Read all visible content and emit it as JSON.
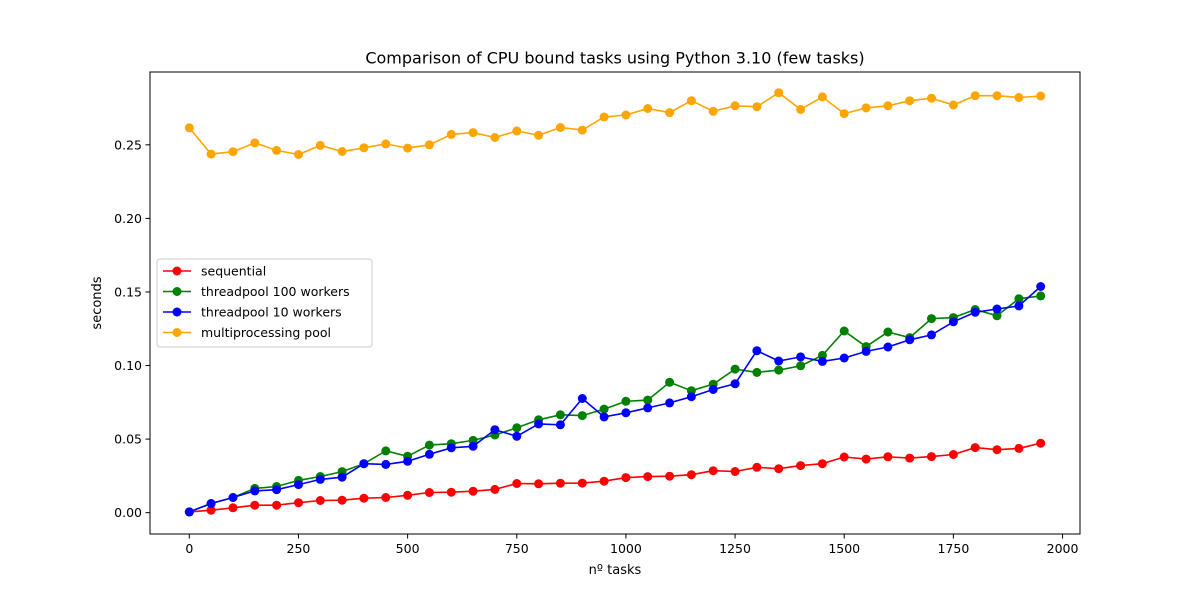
{
  "chart_data": {
    "type": "line",
    "title": "Comparison of CPU bound tasks using Python 3.10 (few tasks)",
    "xlabel": "nº tasks",
    "ylabel": "seconds",
    "xlim": [
      -90,
      2040
    ],
    "ylim": [
      -0.0145,
      0.2995
    ],
    "x_ticks": [
      0,
      250,
      500,
      750,
      1000,
      1250,
      1500,
      1750,
      2000
    ],
    "y_ticks": [
      0.0,
      0.05,
      0.1,
      0.15,
      0.2,
      0.25
    ],
    "y_tick_labels": [
      "0.00",
      "0.05",
      "0.10",
      "0.15",
      "0.20",
      "0.25"
    ],
    "grid": false,
    "legend_position": "center-left",
    "x": [
      0,
      50,
      100,
      150,
      200,
      250,
      300,
      350,
      400,
      450,
      500,
      550,
      600,
      650,
      700,
      750,
      800,
      850,
      900,
      950,
      1000,
      1050,
      1100,
      1150,
      1200,
      1250,
      1300,
      1350,
      1400,
      1450,
      1500,
      1550,
      1600,
      1650,
      1700,
      1750,
      1800,
      1850,
      1900,
      1950
    ],
    "series": [
      {
        "name": "sequential",
        "color": "#ff0000",
        "values": [
          0.0005,
          0.0017,
          0.0033,
          0.0051,
          0.0051,
          0.0068,
          0.0083,
          0.0085,
          0.0098,
          0.0103,
          0.0118,
          0.0137,
          0.0139,
          0.0146,
          0.0158,
          0.0198,
          0.0196,
          0.02,
          0.0201,
          0.0214,
          0.0238,
          0.0245,
          0.0248,
          0.0258,
          0.0285,
          0.028,
          0.0308,
          0.0299,
          0.032,
          0.0333,
          0.0378,
          0.0364,
          0.038,
          0.0371,
          0.0381,
          0.0395,
          0.0442,
          0.0428,
          0.0437,
          0.0472
        ]
      },
      {
        "name": "threadpool 100 workers",
        "color": "#008000",
        "values": [
          0.0005,
          0.0062,
          0.0103,
          0.0165,
          0.0178,
          0.0219,
          0.0246,
          0.0279,
          0.0333,
          0.042,
          0.0383,
          0.0459,
          0.0469,
          0.0491,
          0.0528,
          0.0577,
          0.0631,
          0.0665,
          0.066,
          0.0704,
          0.0757,
          0.0765,
          0.0886,
          0.0829,
          0.0873,
          0.0976,
          0.0953,
          0.0969,
          0.0998,
          0.1069,
          0.1235,
          0.1129,
          0.1228,
          0.119,
          0.1319,
          0.1326,
          0.1381,
          0.1338,
          0.1454,
          0.1473
        ]
      },
      {
        "name": "threadpool 10 workers",
        "color": "#0000ff",
        "values": [
          0.0005,
          0.0062,
          0.0103,
          0.0148,
          0.0156,
          0.0191,
          0.0226,
          0.0241,
          0.0333,
          0.0328,
          0.0349,
          0.0397,
          0.0441,
          0.0451,
          0.0564,
          0.0519,
          0.0603,
          0.0597,
          0.0776,
          0.0651,
          0.0679,
          0.0712,
          0.0746,
          0.0788,
          0.0837,
          0.0876,
          0.1101,
          0.1031,
          0.1059,
          0.1028,
          0.1051,
          0.1096,
          0.1126,
          0.1175,
          0.1208,
          0.1297,
          0.1362,
          0.1384,
          0.1405,
          0.1537
        ]
      },
      {
        "name": "multiprocessing pool",
        "color": "#ffa500",
        "values": [
          0.2616,
          0.2437,
          0.2453,
          0.2513,
          0.2462,
          0.2434,
          0.2496,
          0.2455,
          0.248,
          0.2506,
          0.2478,
          0.25,
          0.2571,
          0.2583,
          0.255,
          0.2595,
          0.2565,
          0.2618,
          0.26,
          0.2689,
          0.2703,
          0.2747,
          0.2719,
          0.28,
          0.2728,
          0.2765,
          0.2759,
          0.2854,
          0.2741,
          0.2826,
          0.2712,
          0.2751,
          0.2765,
          0.28,
          0.2817,
          0.2771,
          0.2834,
          0.2834,
          0.2822,
          0.2832
        ]
      }
    ]
  }
}
